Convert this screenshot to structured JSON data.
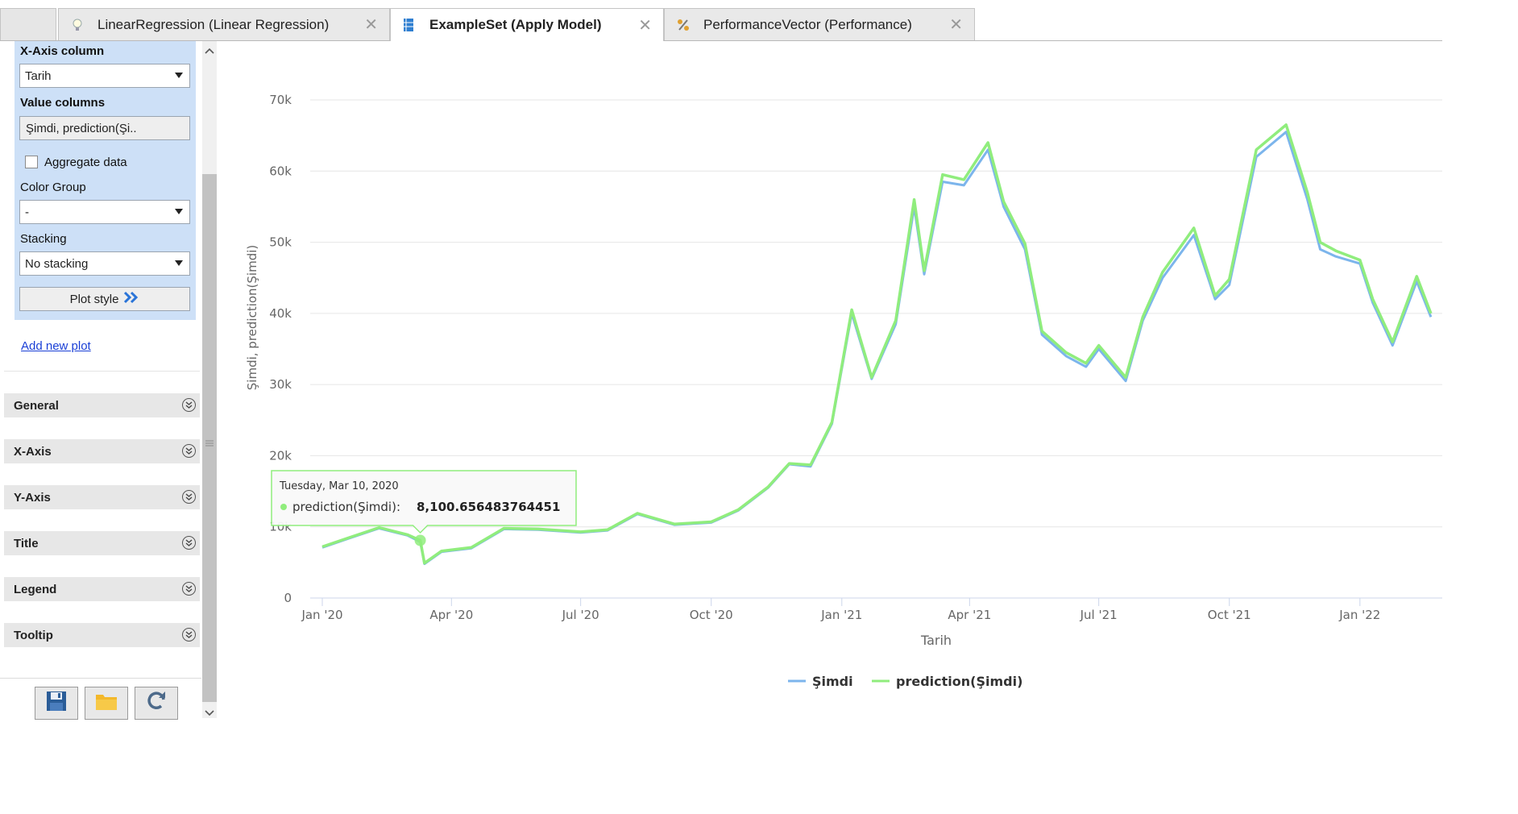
{
  "tabs": [
    {
      "label": "LinearRegression (Linear Regression)",
      "icon": "lightbulb-icon",
      "active": false
    },
    {
      "label": "ExampleSet (Apply Model)",
      "icon": "table-icon",
      "active": true
    },
    {
      "label": "PerformanceVector (Performance)",
      "icon": "percent-icon",
      "active": false
    }
  ],
  "sidebar": {
    "x_axis_column_label": "X-Axis column",
    "x_axis_column_value": "Tarih",
    "value_columns_label": "Value columns",
    "value_columns_value": "Şimdi, prediction(Şi..",
    "aggregate_label": "Aggregate data",
    "color_group_label": "Color Group",
    "color_group_value": "-",
    "stacking_label": "Stacking",
    "stacking_value": "No stacking",
    "plot_style_label": "Plot style",
    "add_new_plot": "Add new plot",
    "sections": [
      "General",
      "X-Axis",
      "Y-Axis",
      "Title",
      "Legend",
      "Tooltip"
    ]
  },
  "chart_data": {
    "type": "line",
    "xlabel": "Tarih",
    "ylabel": "Şimdi, prediction(Şimdi)",
    "ylim": [
      0,
      70000
    ],
    "yticks": [
      "0",
      "10k",
      "20k",
      "30k",
      "40k",
      "50k",
      "60k",
      "70k"
    ],
    "xticks": [
      "Jan '20",
      "Apr '20",
      "Jul '20",
      "Oct '20",
      "Jan '21",
      "Apr '21",
      "Jul '21",
      "Oct '21",
      "Jan '22"
    ],
    "grid": true,
    "legend_placement": "bottom",
    "x": [
      "2020-01-01",
      "2020-01-20",
      "2020-02-10",
      "2020-03-01",
      "2020-03-10",
      "2020-03-13",
      "2020-03-25",
      "2020-04-15",
      "2020-05-08",
      "2020-06-01",
      "2020-07-01",
      "2020-07-20",
      "2020-08-10",
      "2020-09-05",
      "2020-10-01",
      "2020-10-20",
      "2020-11-10",
      "2020-11-25",
      "2020-12-10",
      "2020-12-25",
      "2021-01-08",
      "2021-01-22",
      "2021-02-08",
      "2021-02-21",
      "2021-02-28",
      "2021-03-13",
      "2021-03-28",
      "2021-04-14",
      "2021-04-25",
      "2021-05-10",
      "2021-05-22",
      "2021-06-08",
      "2021-06-22",
      "2021-07-01",
      "2021-07-20",
      "2021-08-01",
      "2021-08-15",
      "2021-09-06",
      "2021-09-21",
      "2021-10-01",
      "2021-10-20",
      "2021-11-10",
      "2021-11-25",
      "2021-12-04",
      "2021-12-15",
      "2022-01-01",
      "2022-01-10",
      "2022-01-24",
      "2022-02-10",
      "2022-02-20"
    ],
    "series": [
      {
        "name": "Şimdi",
        "color": "#7cb5ec",
        "values": [
          7100,
          8400,
          9800,
          8800,
          7900,
          4800,
          6500,
          7000,
          9700,
          9600,
          9200,
          9500,
          11800,
          10300,
          10600,
          12300,
          15500,
          18800,
          18500,
          24500,
          40000,
          30800,
          38500,
          55000,
          45500,
          58500,
          58000,
          63000,
          55000,
          49000,
          37000,
          34000,
          32500,
          35000,
          30500,
          39000,
          45000,
          51000,
          42000,
          44000,
          62000,
          65500,
          56000,
          49000,
          48000,
          47000,
          41500,
          35500,
          44500,
          39500
        ]
      },
      {
        "name": "prediction(Şimdi)",
        "color": "#90ed7d",
        "values": [
          7200,
          8500,
          9900,
          8900,
          8100,
          4900,
          6600,
          7100,
          9800,
          9700,
          9300,
          9600,
          11900,
          10400,
          10700,
          12400,
          15600,
          18900,
          18700,
          24700,
          40500,
          31000,
          39000,
          56000,
          46000,
          59500,
          58800,
          64000,
          55700,
          49800,
          37500,
          34500,
          33000,
          35500,
          31000,
          39500,
          45800,
          52000,
          42500,
          44800,
          63000,
          66500,
          57000,
          50000,
          48800,
          47500,
          42000,
          36000,
          45200,
          40000
        ]
      }
    ],
    "tooltip": {
      "date": "Tuesday, Mar 10, 2020",
      "series": "prediction(Şimdi):",
      "value": "8,100.656483764451"
    }
  },
  "colors": {
    "accent": "#cde0f7",
    "series1": "#7cb5ec",
    "series2": "#90ed7d"
  }
}
